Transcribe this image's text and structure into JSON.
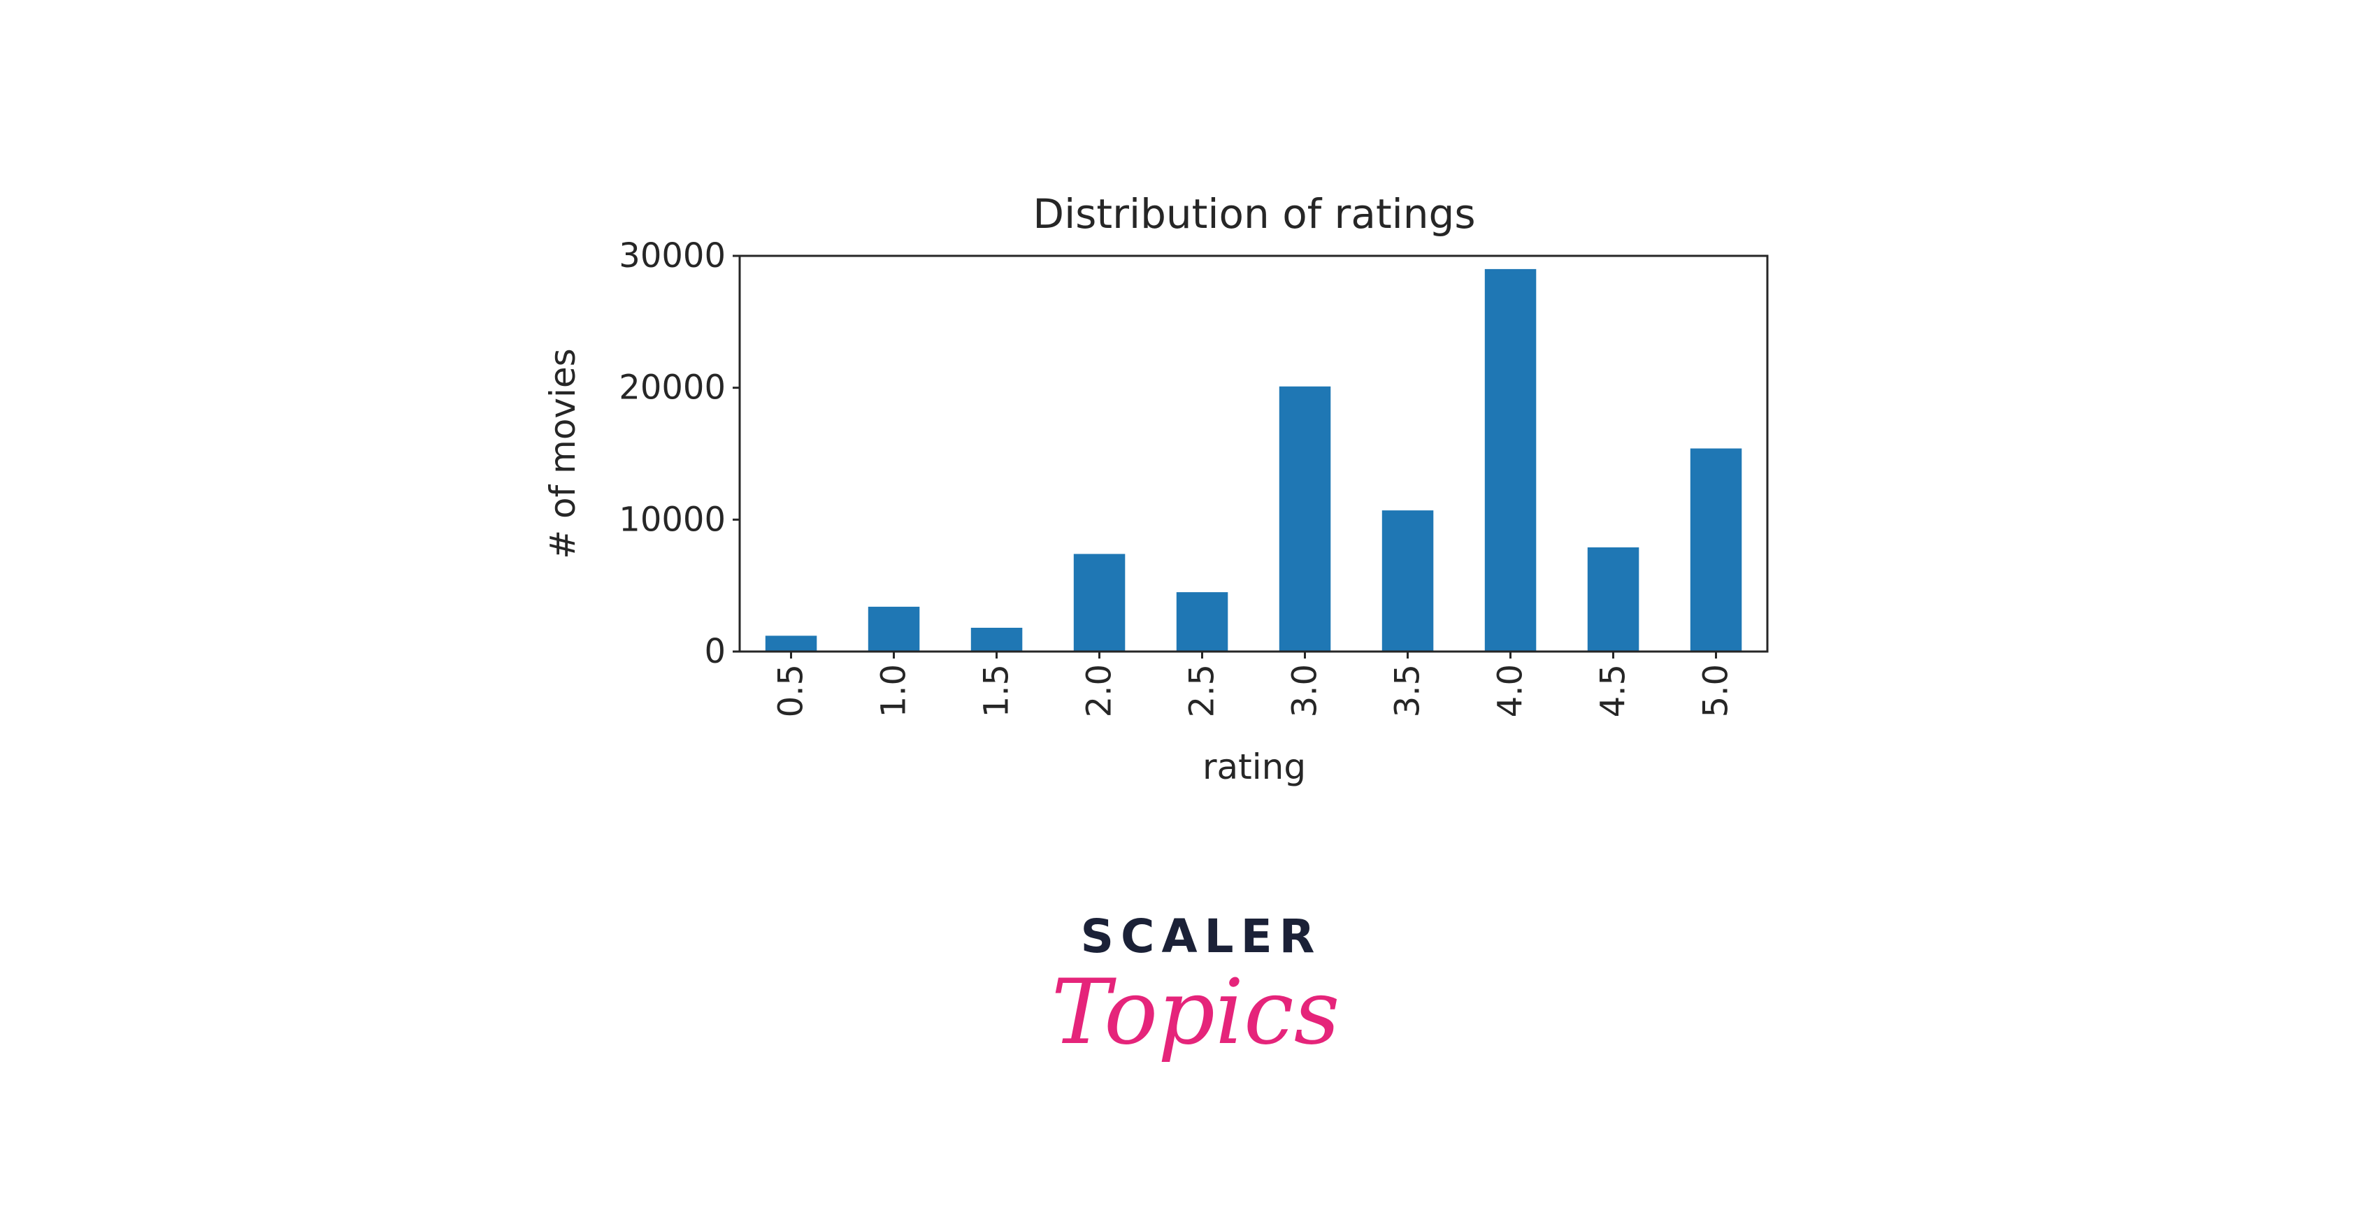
{
  "chart_data": {
    "type": "bar",
    "title": "Distribution of ratings",
    "xlabel": "rating",
    "ylabel": "# of movies",
    "categories": [
      "0.5",
      "1.0",
      "1.5",
      "2.0",
      "2.5",
      "3.0",
      "3.5",
      "4.0",
      "4.5",
      "5.0"
    ],
    "values": [
      1200,
      3400,
      1800,
      7400,
      4500,
      20100,
      10700,
      29000,
      7900,
      15400
    ],
    "ylim": [
      0,
      30000
    ],
    "yticks": [
      "0",
      "10000",
      "20000",
      "30000"
    ],
    "bar_color": "#1f77b4",
    "grid": false
  },
  "brand": {
    "top": "SCALER",
    "bottom": "Topics",
    "top_color": "#1b2137",
    "bottom_color": "#e5247a"
  }
}
